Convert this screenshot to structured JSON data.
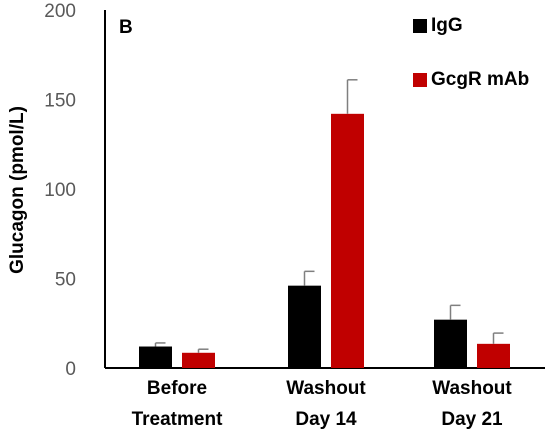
{
  "chart_data": {
    "type": "bar",
    "panel_label": "B",
    "categories": [
      [
        "Before",
        "Treatment"
      ],
      [
        "Washout",
        "Day 14"
      ],
      [
        "Washout",
        "Day 21"
      ]
    ],
    "series": [
      {
        "name": "IgG",
        "color": "#000000",
        "values": [
          12,
          46,
          27
        ],
        "errors": [
          2,
          8,
          8
        ]
      },
      {
        "name": "GcgR mAb",
        "color": "#c00000",
        "values": [
          8.5,
          142,
          13.5
        ],
        "errors": [
          2,
          19,
          6
        ]
      }
    ],
    "ylabel": "Glucagon (pmol/L)",
    "xlabel": "",
    "ylim": [
      0,
      200
    ],
    "yticks": [
      "0",
      "50",
      "100",
      "150",
      "200"
    ],
    "grid": false,
    "legend_position": "top-right"
  }
}
